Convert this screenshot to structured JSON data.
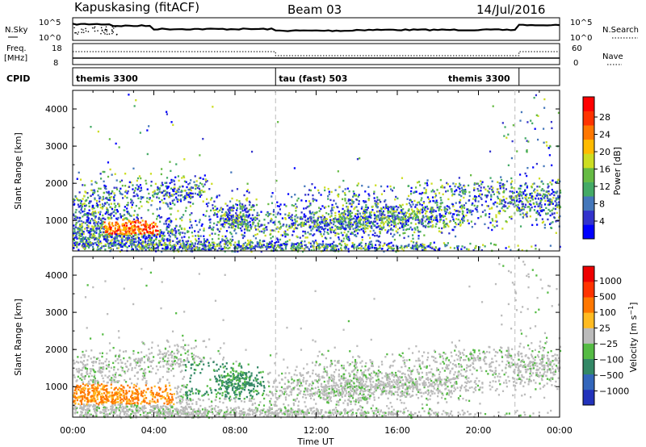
{
  "header": {
    "station": "Kapuskasing (fitACF)",
    "beam": "Beam 03",
    "date": "14/Jul/2016"
  },
  "status_panels": {
    "nsky_label": "N.Sky",
    "nsky_ticks": [
      "10^5",
      "10^0"
    ],
    "nsearch_label": "N.Search",
    "nsearch_ticks": [
      "10^5",
      "10^0"
    ],
    "freq_label": "Freq.",
    "freq_unit": "[MHz]",
    "freq_ticks": [
      "18",
      "8"
    ],
    "nave_label": "Nave",
    "nave_ticks": [
      "60",
      "0"
    ],
    "cpid_label": "CPID",
    "cpid_segments": [
      {
        "label": "themis 3300",
        "start_h": 0,
        "end_h": 10
      },
      {
        "label": "tau (fast) 503",
        "start_h": 10,
        "end_h": 22
      },
      {
        "label": "themis 3300",
        "start_h": 22,
        "end_h": 24
      }
    ]
  },
  "chart_data": [
    {
      "type": "heatmap",
      "panel": "power",
      "ylabel": "Slant Range [km]",
      "xlabel": "",
      "xlim": [
        0,
        24
      ],
      "ylim": [
        180,
        4500
      ],
      "yticks": [
        "1000",
        "2000",
        "3000",
        "4000"
      ],
      "colorbar": {
        "label": "Power [dB]",
        "ticks": [
          "28",
          "24",
          "20",
          "16",
          "12",
          "8",
          "4"
        ],
        "colors": [
          "#0000ff",
          "#3333cc",
          "#4477bb",
          "#44aa66",
          "#66bb44",
          "#ccdd22",
          "#ffbb00",
          "#ff7700",
          "#ff3300",
          "#ff0000"
        ]
      }
    },
    {
      "type": "heatmap",
      "panel": "velocity",
      "ylabel": "Slant Range [km]",
      "xlabel": "Time UT",
      "xlim": [
        0,
        24
      ],
      "ylim": [
        180,
        4500
      ],
      "yticks": [
        "1000",
        "2000",
        "3000",
        "4000"
      ],
      "xticks": [
        "00:00",
        "04:00",
        "08:00",
        "12:00",
        "16:00",
        "20:00",
        "00:00"
      ],
      "colorbar": {
        "label": "Velocity [m s^-1]",
        "ticks": [
          "1000",
          "500",
          "100",
          "25",
          "−25",
          "−100",
          "−500",
          "−1000"
        ],
        "colors": [
          "#2233bb",
          "#3366bb",
          "#338866",
          "#55bb44",
          "#bbbbbb",
          "#ffbb22",
          "#ff7700",
          "#ff3300",
          "#ee0000"
        ]
      }
    }
  ]
}
